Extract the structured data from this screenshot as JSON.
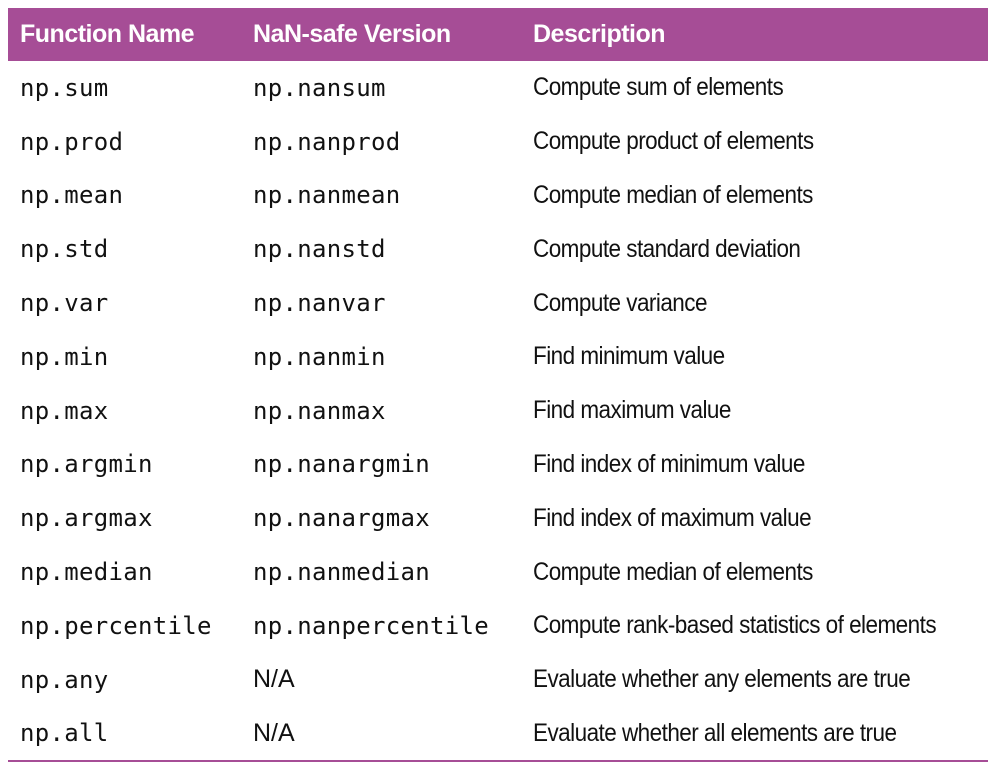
{
  "table": {
    "headers": [
      "Function Name",
      "NaN-safe Version",
      "Description"
    ],
    "rows": [
      [
        "np.sum",
        "np.nansum",
        "Compute sum of elements"
      ],
      [
        "np.prod",
        "np.nanprod",
        "Compute product of elements"
      ],
      [
        "np.mean",
        "np.nanmean",
        "Compute median of elements"
      ],
      [
        "np.std",
        "np.nanstd",
        "Compute standard deviation"
      ],
      [
        "np.var",
        "np.nanvar",
        "Compute variance"
      ],
      [
        "np.min",
        "np.nanmin",
        "Find minimum value"
      ],
      [
        "np.max",
        "np.nanmax",
        "Find maximum value"
      ],
      [
        "np.argmin",
        "np.nanargmin",
        "Find index of minimum value"
      ],
      [
        "np.argmax",
        "np.nanargmax",
        "Find index of maximum value"
      ],
      [
        "np.median",
        "np.nanmedian",
        "Compute median of elements"
      ],
      [
        "np.percentile",
        "np.nanpercentile",
        "Compute rank-based statistics of elements"
      ],
      [
        "np.any",
        "N/A",
        "Evaluate whether any elements are true"
      ],
      [
        "np.all",
        "N/A",
        "Evaluate whether all elements are true"
      ]
    ]
  },
  "colors": {
    "header_bg": "#a64d96",
    "header_text": "#ffffff",
    "body_text": "#111111"
  }
}
